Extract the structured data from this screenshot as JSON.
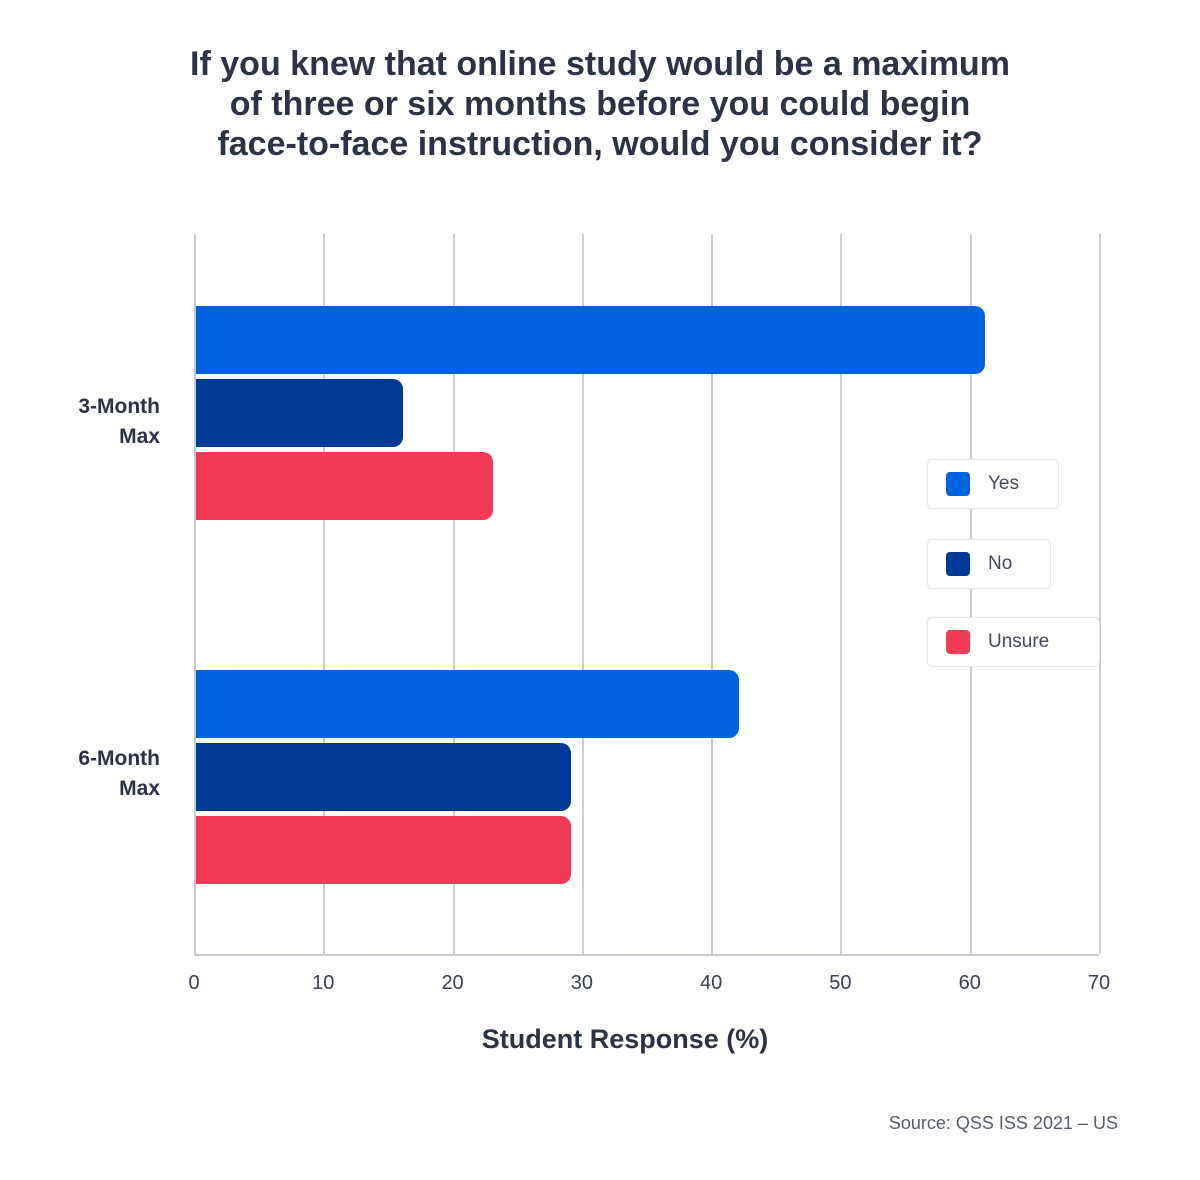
{
  "title": {
    "lines": [
      "If you knew that online study would be a maximum",
      "of three or six months before you could begin",
      "face-to-face instruction, would you consider it?"
    ]
  },
  "colors": {
    "yes": "#0064e1",
    "no": "#003a96",
    "unsure": "#f13a55",
    "grid": "#c8cdd8"
  },
  "legend": [
    {
      "label": "Yes",
      "color": "#0064e1"
    },
    {
      "label": "No",
      "color": "#003a96"
    },
    {
      "label": "Unsure",
      "color": "#f13a55"
    }
  ],
  "xaxis": {
    "label": "Student Response (%)",
    "ticks": [
      "0",
      "10",
      "20",
      "30",
      "40",
      "50",
      "60",
      "70"
    ]
  },
  "source": "Source: QSS ISS 2021 – US",
  "categories": [
    {
      "line1": "3-Month",
      "line2": "Max"
    },
    {
      "line1": "6-Month",
      "line2": "Max"
    }
  ],
  "chart_data": {
    "type": "bar",
    "orientation": "horizontal",
    "title": "If you knew that online study would be a maximum of three or six months before you could begin face-to-face instruction, would you consider it?",
    "categories": [
      "3-Month Max",
      "6-Month Max"
    ],
    "series": [
      {
        "name": "Yes",
        "values": [
          61,
          42
        ]
      },
      {
        "name": "No",
        "values": [
          16,
          29
        ]
      },
      {
        "name": "Unsure",
        "values": [
          23,
          29
        ]
      }
    ],
    "xlabel": "Student Response (%)",
    "ylabel": "",
    "xlim": [
      0,
      70
    ],
    "grid": true,
    "legend_position": "right"
  }
}
